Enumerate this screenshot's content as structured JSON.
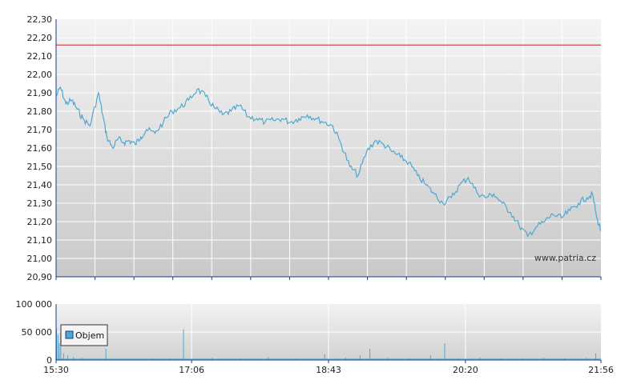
{
  "watermark": "www.patria.cz",
  "colors": {
    "price_line": "#4fa8cf",
    "reference_line": "#cc2222",
    "volume_bar": "#4fa8cf",
    "grid": "#ffffff",
    "axis": "#1a3a8a"
  },
  "chart_data": [
    {
      "type": "line",
      "name": "price",
      "title": "",
      "xlabel": "",
      "ylabel": "",
      "ylim": [
        20.9,
        22.3
      ],
      "y_ticks": [
        "22,30",
        "22,20",
        "22,10",
        "22,00",
        "21,90",
        "21,80",
        "21,70",
        "21,60",
        "21,50",
        "21,40",
        "21,30",
        "21,20",
        "21,10",
        "21,00",
        "20,90"
      ],
      "x_ticks": [
        "15:30",
        "17:06",
        "18:43",
        "20:20",
        "21:56"
      ],
      "reference_line": 22.16,
      "grid": true,
      "series": [
        {
          "x": [
            "15:30",
            "15:33",
            "15:37",
            "15:41",
            "15:45",
            "15:49",
            "15:54",
            "16:00",
            "16:03",
            "16:06",
            "16:10",
            "16:14",
            "16:18",
            "16:22",
            "16:26",
            "16:30",
            "16:34",
            "16:40",
            "16:46",
            "16:52",
            "16:58",
            "17:04",
            "17:10",
            "17:16",
            "17:22",
            "17:28",
            "17:34",
            "17:40",
            "17:46",
            "17:52",
            "17:58",
            "18:04",
            "18:10",
            "18:16",
            "18:22",
            "18:28",
            "18:34",
            "18:40",
            "18:46",
            "18:52",
            "18:58",
            "19:04",
            "19:10",
            "19:16",
            "19:22",
            "19:28",
            "19:34",
            "19:40",
            "19:46",
            "19:52",
            "19:58",
            "20:04",
            "20:10",
            "20:16",
            "20:22",
            "20:28",
            "20:34",
            "20:40",
            "20:46",
            "20:52",
            "20:58",
            "21:04",
            "21:10",
            "21:16",
            "21:22",
            "21:28",
            "21:34",
            "21:40",
            "21:46",
            "21:50",
            "21:53",
            "21:56"
          ],
          "y": [
            21.88,
            21.93,
            21.84,
            21.86,
            21.81,
            21.76,
            21.72,
            21.9,
            21.78,
            21.66,
            21.6,
            21.65,
            21.63,
            21.64,
            21.62,
            21.66,
            21.7,
            21.68,
            21.74,
            21.8,
            21.82,
            21.86,
            21.92,
            21.88,
            21.82,
            21.78,
            21.8,
            21.83,
            21.77,
            21.76,
            21.74,
            21.75,
            21.76,
            21.74,
            21.76,
            21.78,
            21.76,
            21.74,
            21.72,
            21.62,
            21.5,
            21.45,
            21.58,
            21.64,
            21.62,
            21.58,
            21.55,
            21.52,
            21.45,
            21.4,
            21.35,
            21.3,
            21.33,
            21.4,
            21.44,
            21.36,
            21.33,
            21.35,
            21.3,
            21.25,
            21.18,
            21.12,
            21.17,
            21.2,
            21.24,
            21.22,
            21.26,
            21.3,
            21.33,
            21.35,
            21.22,
            21.15
          ]
        }
      ]
    },
    {
      "type": "bar",
      "name": "volume",
      "ylim": [
        0,
        100000
      ],
      "y_ticks": [
        "100 000",
        "50 000",
        "0"
      ],
      "legend": "Objem",
      "legend_position": "top-left",
      "series": [
        {
          "name": "Objem",
          "x": [
            "15:30",
            "15:31",
            "15:32",
            "15:33",
            "15:35",
            "15:38",
            "15:42",
            "15:48",
            "16:05",
            "16:38",
            "16:50",
            "17:00",
            "17:20",
            "17:40",
            "18:00",
            "18:20",
            "18:40",
            "18:55",
            "19:05",
            "19:12",
            "19:25",
            "19:40",
            "19:55",
            "20:05",
            "20:15",
            "20:30",
            "20:45",
            "21:00",
            "21:15",
            "21:30",
            "21:45",
            "21:52"
          ],
          "values": [
            55000,
            45000,
            30000,
            50000,
            12000,
            8000,
            5000,
            4000,
            20000,
            3000,
            3000,
            55000,
            4000,
            3000,
            5000,
            3000,
            10000,
            4000,
            8000,
            20000,
            4000,
            3000,
            8000,
            30000,
            3000,
            4000,
            3000,
            3000,
            4000,
            3000,
            4000,
            12000
          ]
        }
      ]
    }
  ]
}
